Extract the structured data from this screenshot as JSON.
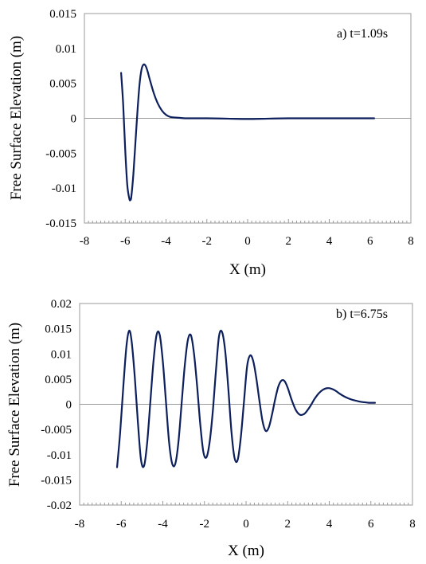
{
  "chart_data": [
    {
      "type": "line",
      "panel_label": "a) t=1.09s",
      "xlabel": "X (m)",
      "ylabel": "Free Surface Elevation (m)",
      "xlim": [
        -8,
        8
      ],
      "ylim": [
        -0.015,
        0.015
      ],
      "x_ticks": [
        -8,
        -6,
        -4,
        -2,
        0,
        2,
        4,
        6,
        8
      ],
      "y_ticks": [
        -0.015,
        -0.01,
        -0.005,
        0,
        0.005,
        0.01,
        0.015
      ],
      "x_tick_labels": [
        "-8",
        "-6",
        "-4",
        "-2",
        "0",
        "2",
        "4",
        "6",
        "8"
      ],
      "y_tick_labels": [
        "-0.015",
        "-0.01",
        "-0.005",
        "0",
        "0.005",
        "0.01",
        "0.015"
      ],
      "grid": false,
      "line_color": "#0d1f5c",
      "series": [
        {
          "x": [
            -6.2,
            -6.1,
            -6.0,
            -5.9,
            -5.8,
            -5.75,
            -5.7,
            -5.6,
            -5.5,
            -5.4,
            -5.3,
            -5.2,
            -5.1,
            -5.0,
            -4.9,
            -4.8,
            -4.6,
            -4.4,
            -4.2,
            -4.0,
            -3.8,
            -3.5,
            -3.2,
            -3.0,
            -2.5,
            -2.0,
            -1.0,
            0.0,
            1.0,
            2.0,
            3.0,
            4.0,
            5.0,
            6.2
          ],
          "y": [
            0.0065,
            0.002,
            -0.0045,
            -0.0095,
            -0.0115,
            -0.0117,
            -0.0112,
            -0.008,
            -0.0035,
            0.001,
            0.0048,
            0.007,
            0.0077,
            0.0075,
            0.0067,
            0.0056,
            0.0036,
            0.0021,
            0.0011,
            0.0005,
            0.0002,
            0.0001,
            3e-05,
            0.0,
            0.0,
            0.0,
            -5e-05,
            -0.0001,
            -5e-05,
            0.0,
            0.0,
            0.0,
            0.0,
            0.0
          ]
        }
      ]
    },
    {
      "type": "line",
      "panel_label": "b) t=6.75s",
      "xlabel": "X (m)",
      "ylabel": "Free Surface Elevation (m)",
      "xlim": [
        -8,
        8
      ],
      "ylim": [
        -0.02,
        0.02
      ],
      "x_ticks": [
        -8,
        -6,
        -4,
        -2,
        0,
        2,
        4,
        6,
        8
      ],
      "y_ticks": [
        -0.02,
        -0.015,
        -0.01,
        -0.005,
        0,
        0.005,
        0.01,
        0.015,
        0.02
      ],
      "x_tick_labels": [
        "-8",
        "-6",
        "-4",
        "-2",
        "0",
        "2",
        "4",
        "6",
        "8"
      ],
      "y_tick_labels": [
        "-0.02",
        "-0.015",
        "-0.01",
        "-0.005",
        "0",
        "0.005",
        "0.01",
        "0.015",
        "0.02"
      ],
      "grid": false,
      "line_color": "#0d1f5c",
      "series": [
        {
          "x": [
            -6.2,
            -6.05,
            -5.9,
            -5.75,
            -5.62,
            -5.5,
            -5.35,
            -5.2,
            -5.05,
            -4.9,
            -4.75,
            -4.6,
            -4.45,
            -4.3,
            -4.15,
            -4.0,
            -3.85,
            -3.7,
            -3.55,
            -3.4,
            -3.25,
            -3.1,
            -2.95,
            -2.8,
            -2.65,
            -2.5,
            -2.35,
            -2.2,
            -2.05,
            -1.9,
            -1.75,
            -1.6,
            -1.45,
            -1.3,
            -1.15,
            -1.0,
            -0.85,
            -0.7,
            -0.55,
            -0.4,
            -0.25,
            -0.1,
            0.05,
            0.2,
            0.35,
            0.5,
            0.65,
            0.8,
            0.95,
            1.1,
            1.25,
            1.4,
            1.55,
            1.7,
            1.85,
            2.0,
            2.2,
            2.4,
            2.6,
            2.8,
            2.95,
            3.1,
            3.3,
            3.5,
            3.7,
            3.9,
            4.1,
            4.3,
            4.5,
            4.7,
            4.9,
            5.1,
            5.3,
            5.5,
            5.7,
            5.9,
            6.05,
            6.2
          ],
          "y": [
            -0.0125,
            -0.0055,
            0.0035,
            0.0115,
            0.0146,
            0.0125,
            0.0055,
            -0.0035,
            -0.011,
            -0.0122,
            -0.0075,
            0.0005,
            0.0085,
            0.0138,
            0.0138,
            0.0085,
            0.0005,
            -0.0075,
            -0.0118,
            -0.0118,
            -0.0075,
            0.0,
            0.0075,
            0.0127,
            0.0137,
            0.01,
            0.0035,
            -0.004,
            -0.0095,
            -0.0105,
            -0.0075,
            -0.0015,
            0.0065,
            0.0135,
            0.0143,
            0.0105,
            0.003,
            -0.0055,
            -0.0107,
            -0.011,
            -0.0065,
            0.0005,
            0.0075,
            0.0097,
            0.0085,
            0.005,
            0.0005,
            -0.0035,
            -0.0053,
            -0.0045,
            -0.002,
            0.001,
            0.0035,
            0.0047,
            0.0046,
            0.0033,
            0.0008,
            -0.0012,
            -0.0021,
            -0.0019,
            -0.0012,
            -0.0003,
            0.0011,
            0.0022,
            0.0029,
            0.0032,
            0.0031,
            0.0027,
            0.0021,
            0.0016,
            0.0012,
            0.0009,
            0.0007,
            0.0005,
            0.0004,
            0.0003,
            0.0003,
            0.0003
          ]
        }
      ]
    }
  ]
}
